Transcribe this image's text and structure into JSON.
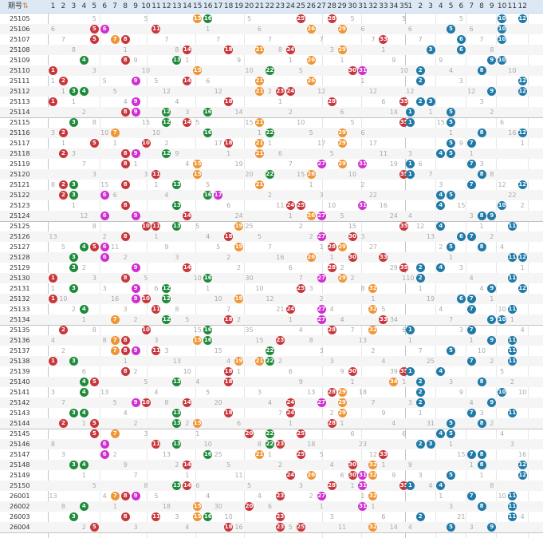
{
  "header": {
    "period_label": "期号",
    "sort_icon": "sort-icon"
  },
  "zones": [
    {
      "name": "front",
      "count": 35,
      "labels": [
        "1",
        "2",
        "3",
        "4",
        "5",
        "6",
        "7",
        "8",
        "9",
        "10",
        "11",
        "12",
        "13",
        "14",
        "15",
        "16",
        "17",
        "18",
        "19",
        "20",
        "21",
        "22",
        "23",
        "24",
        "25",
        "26",
        "27",
        "28",
        "29",
        "30",
        "31",
        "32",
        "33",
        "34",
        "35"
      ]
    },
    {
      "name": "back",
      "count": 12,
      "labels": [
        "1",
        "2",
        "3",
        "4",
        "5",
        "6",
        "7",
        "8",
        "9",
        "10",
        "11",
        "12"
      ]
    }
  ],
  "colors": {
    "red": "#c8363b",
    "orange": "#ef9533",
    "green": "#1e8a3a",
    "magenta": "#d12ed0",
    "blue": "#1f7aa8",
    "header_bg": "#dce9f5"
  },
  "periods": [
    {
      "id": "25105",
      "front": [
        15,
        16,
        25,
        28
      ],
      "back": [
        10,
        12
      ]
    },
    {
      "id": "25106",
      "front": [
        5,
        6,
        11,
        26,
        29
      ],
      "back": [
        5,
        10
      ]
    },
    {
      "id": "25107",
      "front": [
        5,
        7,
        8,
        33
      ],
      "back": [
        6,
        10
      ]
    },
    {
      "id": "25108",
      "front": [
        14,
        18,
        21,
        24,
        29
      ],
      "back": [
        3,
        6
      ]
    },
    {
      "id": "25109",
      "front": [
        4,
        8,
        13,
        26
      ],
      "back": [
        9,
        10
      ]
    },
    {
      "id": "25110",
      "front": [
        1,
        15,
        22,
        30,
        31
      ],
      "back": [
        2,
        8
      ]
    },
    {
      "id": "25111",
      "front": [
        2,
        9,
        14,
        21,
        26
      ],
      "back": [
        2,
        12
      ]
    },
    {
      "id": "25112",
      "front": [
        3,
        4,
        21,
        23,
        24
      ],
      "back": [
        9,
        12
      ]
    },
    {
      "id": "25113",
      "front": [
        1,
        9,
        18,
        28,
        35
      ],
      "back": [
        2,
        3
      ]
    },
    {
      "id": "25114",
      "front": [
        8,
        9,
        12,
        16
      ],
      "back": [
        1,
        5
      ]
    },
    {
      "id": "25115",
      "front": [
        3,
        12,
        14,
        21,
        35
      ],
      "back": [
        1,
        5
      ]
    },
    {
      "id": "25116",
      "front": [
        2,
        7,
        16,
        22,
        29
      ],
      "back": [
        8,
        12
      ]
    },
    {
      "id": "25117",
      "front": [
        5,
        10,
        18,
        21,
        29
      ],
      "back": [
        5,
        7
      ]
    },
    {
      "id": "25118",
      "front": [
        2,
        8,
        9,
        12,
        21
      ],
      "back": [
        4,
        5
      ]
    },
    {
      "id": "25119",
      "front": [
        8,
        15,
        27,
        29,
        31
      ],
      "back": [
        1,
        7
      ]
    },
    {
      "id": "25120",
      "front": [
        11,
        15,
        22,
        26,
        35
      ],
      "back": [
        1,
        8
      ]
    },
    {
      "id": "25121",
      "front": [
        2,
        3,
        8,
        13,
        21
      ],
      "back": [
        7,
        12
      ]
    },
    {
      "id": "25122",
      "front": [
        2,
        3,
        6,
        16,
        17
      ],
      "back": [
        4,
        5
      ]
    },
    {
      "id": "25123",
      "front": [
        8,
        13,
        24,
        25,
        31
      ],
      "back": [
        4,
        10
      ]
    },
    {
      "id": "25124",
      "front": [
        6,
        9,
        14,
        26,
        27
      ],
      "back": [
        8,
        9
      ]
    },
    {
      "id": "25125",
      "front": [
        10,
        11,
        13,
        19,
        35
      ],
      "back": [
        4,
        11
      ]
    },
    {
      "id": "25126",
      "front": [
        8,
        18,
        27,
        30
      ],
      "back": [
        6,
        7
      ]
    },
    {
      "id": "25127",
      "front": [
        4,
        5,
        6,
        19,
        28,
        29
      ],
      "back": [
        5,
        8
      ]
    },
    {
      "id": "25128",
      "front": [
        3,
        6,
        26,
        30,
        33
      ],
      "back": [
        11,
        12
      ]
    },
    {
      "id": "25129",
      "front": [
        3,
        9,
        14,
        28,
        35
      ],
      "back": [
        2,
        4
      ]
    },
    {
      "id": "25130",
      "front": [
        1,
        8,
        16,
        27,
        29
      ],
      "back": [
        2,
        11
      ]
    },
    {
      "id": "25131",
      "front": [
        3,
        9,
        12,
        25,
        32
      ],
      "back": [
        9,
        12
      ]
    },
    {
      "id": "25132",
      "front": [
        1,
        9,
        10,
        12,
        19
      ],
      "back": [
        6,
        7
      ]
    },
    {
      "id": "25133",
      "front": [
        4,
        11,
        24,
        27,
        32
      ],
      "back": [
        7,
        11
      ]
    },
    {
      "id": "25134",
      "front": [
        7,
        12,
        18,
        27,
        33
      ],
      "back": [
        9,
        10
      ]
    },
    {
      "id": "25135",
      "front": [
        2,
        10,
        16,
        28,
        32
      ],
      "back": [
        1,
        7
      ]
    },
    {
      "id": "25136",
      "front": [
        7,
        8,
        15,
        16,
        23
      ],
      "back": [
        9,
        11
      ]
    },
    {
      "id": "25137",
      "front": [
        7,
        8,
        9,
        11,
        22
      ],
      "back": [
        5,
        11
      ]
    },
    {
      "id": "25138",
      "front": [
        1,
        3,
        19,
        21,
        22
      ],
      "back": [
        7,
        11
      ]
    },
    {
      "id": "25139",
      "front": [
        8,
        18,
        30,
        35
      ],
      "back": [
        1,
        4
      ]
    },
    {
      "id": "25140",
      "front": [
        4,
        5,
        13,
        18,
        34
      ],
      "back": [
        2,
        8
      ]
    },
    {
      "id": "25141",
      "front": [
        4,
        28,
        29
      ],
      "back": [
        2,
        10
      ]
    },
    {
      "id": "25142",
      "front": [
        9,
        10,
        14,
        24,
        27,
        29
      ],
      "back": [
        2,
        9
      ]
    },
    {
      "id": "25143",
      "front": [
        3,
        4,
        13,
        18,
        24,
        29
      ],
      "back": [
        7,
        11
      ]
    },
    {
      "id": "25144",
      "front": [
        2,
        5,
        13,
        15,
        28
      ],
      "back": [
        5,
        8
      ]
    },
    {
      "id": "25145",
      "front": [
        5,
        7,
        20,
        22,
        25
      ],
      "back": [
        4,
        5
      ]
    },
    {
      "id": "25146",
      "front": [
        6,
        11,
        13,
        22,
        23
      ],
      "back": [
        2,
        3
      ]
    },
    {
      "id": "25147",
      "front": [
        6,
        16,
        21,
        25,
        33
      ],
      "back": [
        7,
        8
      ]
    },
    {
      "id": "25148",
      "front": [
        3,
        4,
        14,
        30,
        32
      ],
      "back": [
        8,
        12
      ]
    },
    {
      "id": "25149",
      "front": [
        24,
        26,
        30,
        31,
        32
      ],
      "back": [
        5,
        12
      ]
    },
    {
      "id": "25150",
      "front": [
        13,
        14,
        28,
        31,
        35
      ],
      "back": [
        1,
        4
      ]
    },
    {
      "id": "26001",
      "front": [
        7,
        8,
        9,
        23,
        27,
        32
      ],
      "back": [
        7,
        11
      ]
    },
    {
      "id": "26002",
      "front": [
        4,
        15,
        20,
        31
      ],
      "back": [
        8,
        11
      ]
    },
    {
      "id": "26003",
      "front": [
        3,
        8,
        11,
        15,
        16,
        23
      ],
      "back": [
        2,
        11
      ]
    },
    {
      "id": "26004",
      "front": [
        5,
        18,
        23,
        25,
        32
      ],
      "back": [
        5,
        9
      ]
    }
  ]
}
